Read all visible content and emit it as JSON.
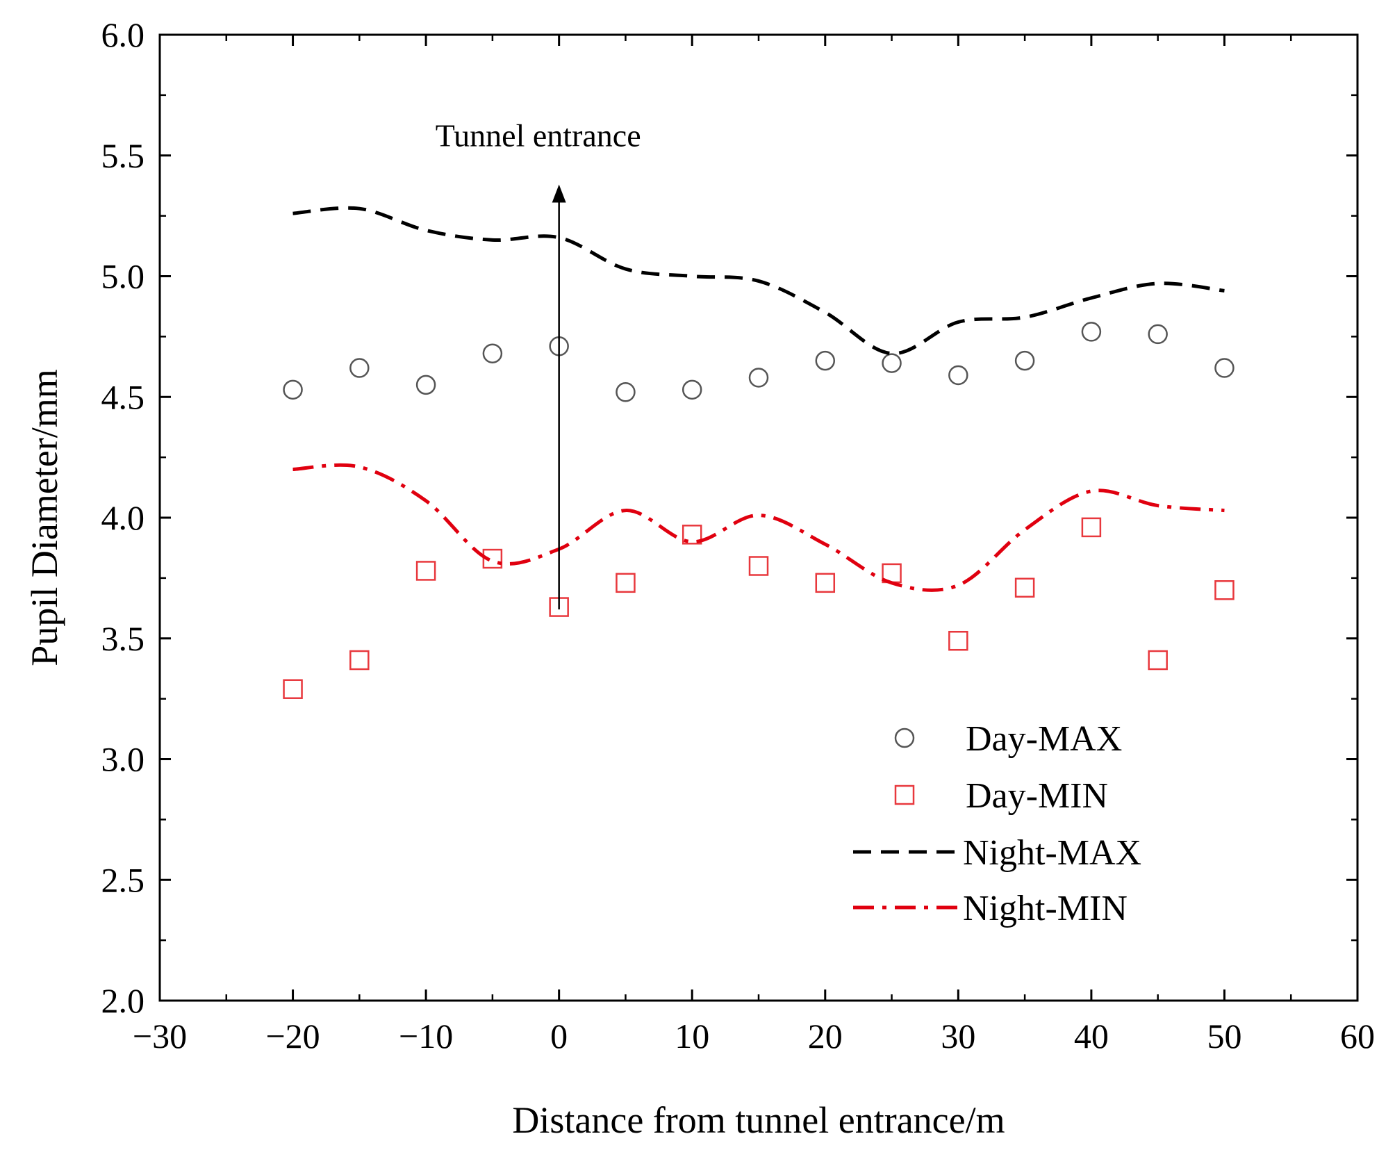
{
  "chart_data": {
    "type": "scatter",
    "title": "",
    "xlabel": "Distance from tunnel entrance/m",
    "ylabel": "Pupil Diameter/mm",
    "xlim": [
      -30,
      60
    ],
    "ylim": [
      2.0,
      6.0
    ],
    "x_ticks": [
      -30,
      -20,
      -10,
      0,
      10,
      20,
      30,
      40,
      50,
      60
    ],
    "x_tick_labels": [
      "−30",
      "−20",
      "−10",
      "0",
      "10",
      "20",
      "30",
      "40",
      "50",
      "60"
    ],
    "y_ticks": [
      2.0,
      2.5,
      3.0,
      3.5,
      4.0,
      4.5,
      5.0,
      5.5,
      6.0
    ],
    "y_tick_labels": [
      "2.0",
      "2.5",
      "3.0",
      "3.5",
      "4.0",
      "4.5",
      "5.0",
      "5.5",
      "6.0"
    ],
    "grid": false,
    "legend_position": "bottom-right",
    "annotation": {
      "text": "Tunnel entrance",
      "x": 0,
      "y_from": 3.62,
      "y_to": 5.38
    },
    "series": [
      {
        "name": "Day-MAX",
        "kind": "markers",
        "marker": "circle",
        "color": "#555555",
        "x": [
          -20,
          -15,
          -10,
          -5,
          0,
          5,
          10,
          15,
          20,
          25,
          30,
          35,
          40,
          45,
          50
        ],
        "y": [
          4.53,
          4.62,
          4.55,
          4.68,
          4.71,
          4.52,
          4.53,
          4.58,
          4.65,
          4.64,
          4.59,
          4.65,
          4.77,
          4.76,
          4.62
        ]
      },
      {
        "name": "Day-MIN",
        "kind": "markers",
        "marker": "square",
        "color": "#e8383d",
        "x": [
          -20,
          -15,
          -10,
          -5,
          0,
          5,
          10,
          15,
          20,
          25,
          30,
          35,
          40,
          45,
          50
        ],
        "y": [
          3.29,
          3.41,
          3.78,
          3.83,
          3.63,
          3.73,
          3.93,
          3.8,
          3.73,
          3.77,
          3.49,
          3.71,
          3.96,
          3.41,
          3.7
        ]
      },
      {
        "name": "Night-MAX",
        "kind": "line",
        "style": "dashed",
        "color": "#000000",
        "x": [
          -20,
          -15,
          -10,
          -5,
          0,
          5,
          10,
          15,
          20,
          25,
          30,
          35,
          40,
          45,
          50
        ],
        "y": [
          5.26,
          5.28,
          5.19,
          5.15,
          5.16,
          5.03,
          5.0,
          4.98,
          4.85,
          4.68,
          4.81,
          4.83,
          4.91,
          4.97,
          4.94
        ]
      },
      {
        "name": "Night-MIN",
        "kind": "line",
        "style": "dash-dot",
        "color": "#e0000f",
        "x": [
          -20,
          -15,
          -10,
          -5,
          0,
          5,
          10,
          15,
          20,
          25,
          30,
          35,
          40,
          45,
          50
        ],
        "y": [
          4.2,
          4.21,
          4.07,
          3.82,
          3.87,
          4.03,
          3.9,
          4.01,
          3.89,
          3.73,
          3.72,
          3.95,
          4.11,
          4.05,
          4.03
        ]
      }
    ]
  }
}
